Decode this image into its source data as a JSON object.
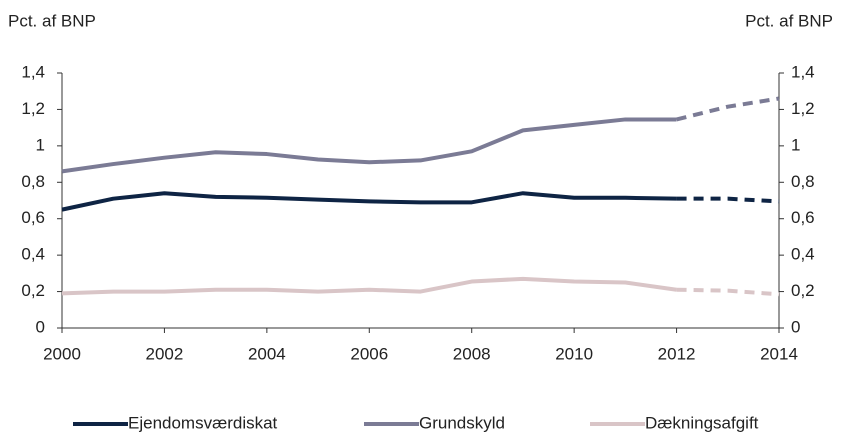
{
  "chart_data": {
    "type": "line",
    "y_label": "Pct. af BNP",
    "y2_label": "Pct. af BNP",
    "x": [
      2000,
      2001,
      2002,
      2003,
      2004,
      2005,
      2006,
      2007,
      2008,
      2009,
      2010,
      2011,
      2012,
      2013,
      2014
    ],
    "projection_start": 2012,
    "series": [
      {
        "name": "Ejendomsværdiskat",
        "color": "#0e2444",
        "values": [
          0.65,
          0.71,
          0.74,
          0.72,
          0.715,
          0.705,
          0.695,
          0.69,
          0.69,
          0.74,
          0.715,
          0.715,
          0.71,
          0.71,
          0.695
        ]
      },
      {
        "name": "Grundskyld",
        "color": "#7b7b95",
        "values": [
          0.86,
          0.9,
          0.935,
          0.965,
          0.955,
          0.925,
          0.91,
          0.92,
          0.97,
          1.085,
          1.115,
          1.145,
          1.145,
          1.215,
          1.26
        ]
      },
      {
        "name": "Dækningsafgift",
        "color": "#d9c5c7",
        "values": [
          0.19,
          0.2,
          0.2,
          0.21,
          0.21,
          0.2,
          0.21,
          0.2,
          0.255,
          0.27,
          0.255,
          0.25,
          0.21,
          0.205,
          0.185
        ]
      }
    ],
    "xlim": [
      2000,
      2014
    ],
    "xticks": [
      2000,
      2002,
      2004,
      2006,
      2008,
      2010,
      2012,
      2014
    ],
    "ylim": [
      0,
      1.4
    ],
    "yticks": [
      0,
      {
        "value": 0.2,
        "label": "0,2"
      },
      {
        "value": 0.4,
        "label": "0,4"
      },
      {
        "value": 0.6,
        "label": "0,6"
      },
      {
        "value": 0.8,
        "label": "0,8"
      },
      1,
      {
        "value": 1.2,
        "label": "1,2"
      },
      {
        "value": 1.4,
        "label": "1,4"
      }
    ],
    "y2lim": [
      0,
      1.4
    ],
    "y2ticks": [
      0,
      {
        "value": 0.2,
        "label": "0,2"
      },
      {
        "value": 0.4,
        "label": "0,4"
      },
      {
        "value": 0.6,
        "label": "0,6"
      },
      {
        "value": 0.8,
        "label": "0,8"
      },
      1,
      {
        "value": 1.2,
        "label": "1,2"
      },
      {
        "value": 1.4,
        "label": "1,4"
      }
    ]
  }
}
